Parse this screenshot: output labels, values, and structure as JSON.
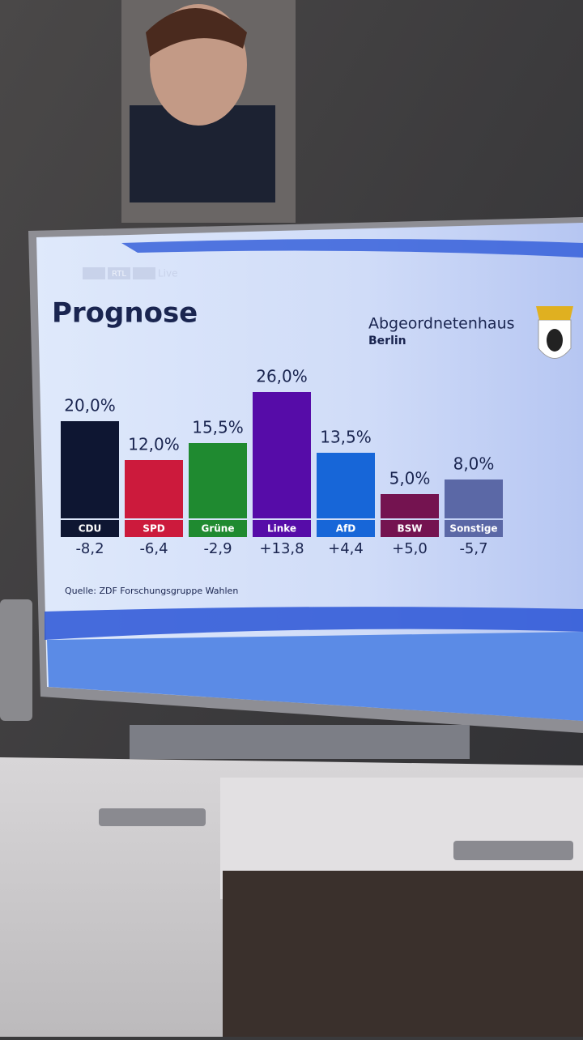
{
  "chart_data": {
    "type": "bar",
    "channel": "RTL",
    "channel_tag": "Live",
    "title": "Prognose",
    "subtitle": "Abgeordnetenhaus",
    "region": "Berlin",
    "source": "Quelle: ZDF Forschungsgruppe Wahlen",
    "categories": [
      "CDU",
      "SPD",
      "Grüne",
      "Linke",
      "AfD",
      "BSW",
      "Sonstige"
    ],
    "values": [
      20.0,
      12.0,
      15.5,
      26.0,
      13.5,
      5.0,
      8.0
    ],
    "value_labels": [
      "20,0%",
      "12,0%",
      "15,5%",
      "26,0%",
      "13,5%",
      "5,0%",
      "8,0%"
    ],
    "changes": [
      -8.2,
      -6.4,
      -2.9,
      13.8,
      4.4,
      5.0,
      -5.7
    ],
    "change_labels": [
      "-8,2",
      "-6,4",
      "-2,9",
      "+13,8",
      "+4,4",
      "+5,0",
      "-5,7"
    ],
    "colors": [
      "#0e1632",
      "#cc1a3c",
      "#1f8a30",
      "#560ca8",
      "#1766d8",
      "#741350",
      "#5b68a6"
    ]
  }
}
